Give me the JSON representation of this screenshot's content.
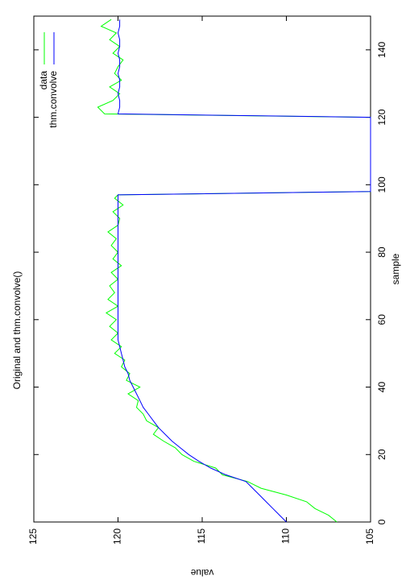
{
  "chart_data": {
    "type": "line",
    "title": "Original and thm.convolve()",
    "x_label": "sample",
    "y_label": "value",
    "x": [
      0,
      2,
      4,
      6,
      8,
      10,
      12,
      14,
      16,
      18,
      20,
      22,
      24,
      26,
      28,
      30,
      32,
      34,
      36,
      38,
      40,
      42,
      44,
      46,
      48,
      50,
      52,
      54,
      56,
      58,
      60,
      62,
      64,
      66,
      68,
      70,
      72,
      74,
      76,
      78,
      80,
      82,
      84,
      86,
      88,
      90,
      92,
      94,
      96,
      97,
      98,
      110,
      120,
      121,
      123,
      125,
      127,
      129,
      131,
      133,
      135,
      137,
      139,
      141,
      143,
      145,
      147,
      149
    ],
    "series": [
      {
        "name": "data",
        "color": "#00ff00",
        "values": [
          107.0,
          107.5,
          108.3,
          108.8,
          110.0,
          111.5,
          112.3,
          113.8,
          114.2,
          115.5,
          116.2,
          116.6,
          117.3,
          117.9,
          117.6,
          118.3,
          118.5,
          118.9,
          118.8,
          119.4,
          118.7,
          119.5,
          119.3,
          119.8,
          119.6,
          120.2,
          119.8,
          120.4,
          120.0,
          120.5,
          120.1,
          120.7,
          120.0,
          120.6,
          120.2,
          120.5,
          120.0,
          120.4,
          119.8,
          120.3,
          120.0,
          120.4,
          120.1,
          120.6,
          120.0,
          119.9,
          120.3,
          119.7,
          120.2,
          120.0,
          105,
          105,
          105,
          120.8,
          121.2,
          120.3,
          119.9,
          120.5,
          119.8,
          120.2,
          120.0,
          119.7,
          120.3,
          119.9,
          120.5,
          120.1,
          121.0,
          120.4
        ]
      },
      {
        "name": "thm.convolve",
        "color": "#0000ff",
        "values": [
          110.0,
          110.4,
          110.8,
          111.2,
          111.6,
          112.0,
          112.4,
          113.6,
          114.5,
          115.2,
          115.8,
          116.3,
          116.8,
          117.2,
          117.6,
          117.9,
          118.2,
          118.5,
          118.7,
          118.9,
          119.1,
          119.3,
          119.4,
          119.6,
          119.7,
          119.8,
          119.9,
          120.0,
          120.0,
          120.0,
          120.0,
          120.0,
          120.0,
          120.0,
          120.0,
          120.0,
          120.0,
          120.0,
          120.0,
          120.0,
          120.0,
          120.0,
          120.0,
          120.0,
          120.0,
          120.0,
          120.0,
          120.0,
          120.0,
          120.0,
          105,
          105,
          105,
          120.0,
          119.9,
          119.9,
          120.0,
          119.9,
          119.9,
          120.0,
          119.9,
          119.9,
          120.0,
          119.9,
          119.9,
          120.0,
          119.9,
          119.9
        ]
      }
    ],
    "xlim": [
      0,
      150
    ],
    "xticks": [
      0,
      20,
      40,
      60,
      80,
      100,
      120,
      140
    ],
    "ylim": [
      105,
      125
    ],
    "yticks": [
      105,
      110,
      115,
      120,
      125
    ]
  }
}
